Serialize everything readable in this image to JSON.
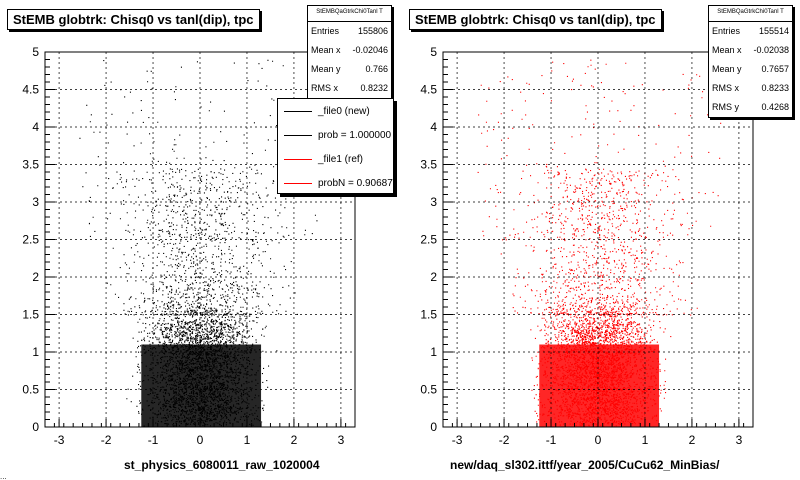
{
  "chart_data": [
    {
      "type": "scatter",
      "title": "StEMB globtrk: Chisq0 vs tanl(dip), tpc",
      "xlim": [
        -3.3,
        3.3
      ],
      "ylim": [
        0,
        5
      ],
      "x_ticks": [
        "-3",
        "-2",
        "-1",
        "0",
        "1",
        "2",
        "3"
      ],
      "y_ticks": [
        "0",
        "0.5",
        "1",
        "1.5",
        "2",
        "2.5",
        "3",
        "3.5",
        "4",
        "4.5",
        "5"
      ],
      "grid": true,
      "xlabel": "st_physics_6080011_raw_1020004",
      "ylabel": "",
      "series_color": "#000000",
      "density": {
        "core_x": [
          -1.6,
          1.6
        ],
        "core_y": [
          0.0,
          1.5
        ],
        "sparse_x": [
          -2.3,
          2.3
        ],
        "sparse_y": [
          1.5,
          3.0
        ]
      },
      "stats": {
        "name": "StEMBQaGtrkChi0Tanl T",
        "entries_label": "Entries",
        "entries": "155806",
        "meanx_label": "Mean x",
        "meanx": "-0.02046",
        "meany_label": "Mean y",
        "meany": "0.766",
        "rmsx_label": "RMS x",
        "rmsx": "0.8232"
      },
      "legend": [
        {
          "label": "_file0 (new)",
          "color": "#000000"
        },
        {
          "label": "prob = 1.000000",
          "color": "#000000"
        },
        {
          "label": "_file1 (ref)",
          "color": "#ff0000"
        },
        {
          "label": "probN = 0.906870",
          "color": "#ff0000"
        }
      ]
    },
    {
      "type": "scatter",
      "title": "StEMB globtrk: Chisq0 vs tanl(dip), tpc",
      "xlim": [
        -3.3,
        3.3
      ],
      "ylim": [
        0,
        5
      ],
      "x_ticks": [
        "-3",
        "-2",
        "-1",
        "0",
        "1",
        "2",
        "3"
      ],
      "y_ticks": [
        "0",
        "0.5",
        "1",
        "1.5",
        "2",
        "2.5",
        "3",
        "3.5",
        "4",
        "4.5",
        "5"
      ],
      "grid": true,
      "xlabel": "new/daq_sl302.ittf/year_2005/CuCu62_MinBias/",
      "ylabel": "",
      "series_color": "#ff0000",
      "density": {
        "core_x": [
          -1.6,
          1.6
        ],
        "core_y": [
          0.0,
          1.5
        ],
        "sparse_x": [
          -2.3,
          2.3
        ],
        "sparse_y": [
          1.5,
          3.0
        ]
      },
      "stats": {
        "name": "StEMBQaGtrkChi0Tanl T",
        "entries_label": "Entries",
        "entries": "155514",
        "meanx_label": "Mean x",
        "meanx": "-0.02038",
        "meany_label": "Mean y",
        "meany": "0.7657",
        "rmsx_label": "RMS x",
        "rmsx": "0.8233",
        "rmsy_label": "RMS y",
        "rmsy": "0.4268"
      }
    }
  ],
  "footer_fragment": "..."
}
